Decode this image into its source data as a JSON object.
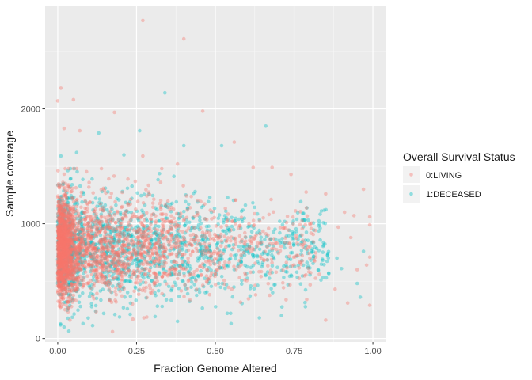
{
  "chart_data": {
    "type": "scatter",
    "title": "",
    "xlabel": "Fraction Genome Altered",
    "ylabel": "Sample coverage",
    "xlim": [
      -0.04,
      1.04
    ],
    "ylim": [
      -30,
      2900
    ],
    "x_ticks": [
      0.0,
      0.25,
      0.5,
      0.75,
      1.0
    ],
    "x_tick_labels": [
      "0.00",
      "0.25",
      "0.50",
      "0.75",
      "1.00"
    ],
    "y_ticks": [
      0,
      1000,
      2000
    ],
    "y_tick_labels": [
      "0",
      "1000",
      "2000"
    ],
    "grid": true,
    "panel_background": "#ebebeb",
    "legend": {
      "title": "Overall Survival Status",
      "position": "right",
      "entries": [
        {
          "label": "0:LIVING",
          "color": "#F8766D"
        },
        {
          "label": "1:DECEASED",
          "color": "#00BFC4"
        }
      ]
    },
    "point_alpha": 0.38,
    "series": [
      {
        "name": "0:LIVING",
        "color": "#F8766D",
        "points": [
          [
            0.27,
            2770
          ],
          [
            0.4,
            2610
          ],
          [
            0.01,
            2180
          ],
          [
            0.05,
            2080
          ],
          [
            0.0,
            2070
          ],
          [
            0.18,
            1970
          ],
          [
            0.46,
            1980
          ],
          [
            0.02,
            1830
          ],
          [
            0.07,
            1810
          ],
          [
            0.27,
            1590
          ],
          [
            0.38,
            1520
          ],
          [
            0.56,
            1710
          ],
          [
            0.05,
            1480
          ],
          [
            0.62,
            1490
          ],
          [
            0.68,
            1490
          ],
          [
            0.74,
            1430
          ],
          [
            0.97,
            1300
          ],
          [
            0.85,
            1260
          ],
          [
            0.91,
            1100
          ],
          [
            0.94,
            1070
          ],
          [
            0.99,
            1060
          ],
          [
            0.99,
            990
          ],
          [
            0.89,
            970
          ],
          [
            0.93,
            880
          ],
          [
            0.99,
            710
          ],
          [
            0.98,
            640
          ],
          [
            0.95,
            600
          ],
          [
            0.88,
            430
          ],
          [
            0.92,
            310
          ],
          [
            0.99,
            290
          ],
          [
            0.85,
            160
          ],
          [
            0.79,
            340
          ],
          [
            0.83,
            560
          ],
          [
            0.8,
            700
          ],
          [
            0.76,
            830
          ]
        ],
        "cluster": {
          "x_range": [
            0.0,
            0.8
          ],
          "y_range": [
            100,
            1400
          ],
          "dense_region": {
            "x": [
              0.0,
              0.3
            ],
            "y": [
              450,
              1100
            ]
          }
        }
      },
      {
        "name": "1:DECEASED",
        "color": "#00BFC4",
        "points": [
          [
            0.34,
            2140
          ],
          [
            0.26,
            1810
          ],
          [
            0.66,
            1850
          ],
          [
            0.13,
            1790
          ],
          [
            0.4,
            1680
          ],
          [
            0.06,
            1620
          ],
          [
            0.52,
            1680
          ],
          [
            0.21,
            1600
          ],
          [
            0.01,
            1590
          ],
          [
            0.78,
            1090
          ],
          [
            0.83,
            1000
          ],
          [
            0.97,
            760
          ],
          [
            0.95,
            480
          ],
          [
            0.96,
            360
          ],
          [
            0.71,
            200
          ],
          [
            0.64,
            180
          ],
          [
            0.55,
            130
          ],
          [
            0.38,
            150
          ],
          [
            0.08,
            130
          ],
          [
            0.02,
            100
          ]
        ],
        "cluster": {
          "x_range": [
            0.0,
            0.85
          ],
          "y_range": [
            100,
            1500
          ],
          "dense_region": {
            "x": [
              0.0,
              0.6
            ],
            "y": [
              300,
              1100
            ]
          }
        }
      }
    ]
  }
}
